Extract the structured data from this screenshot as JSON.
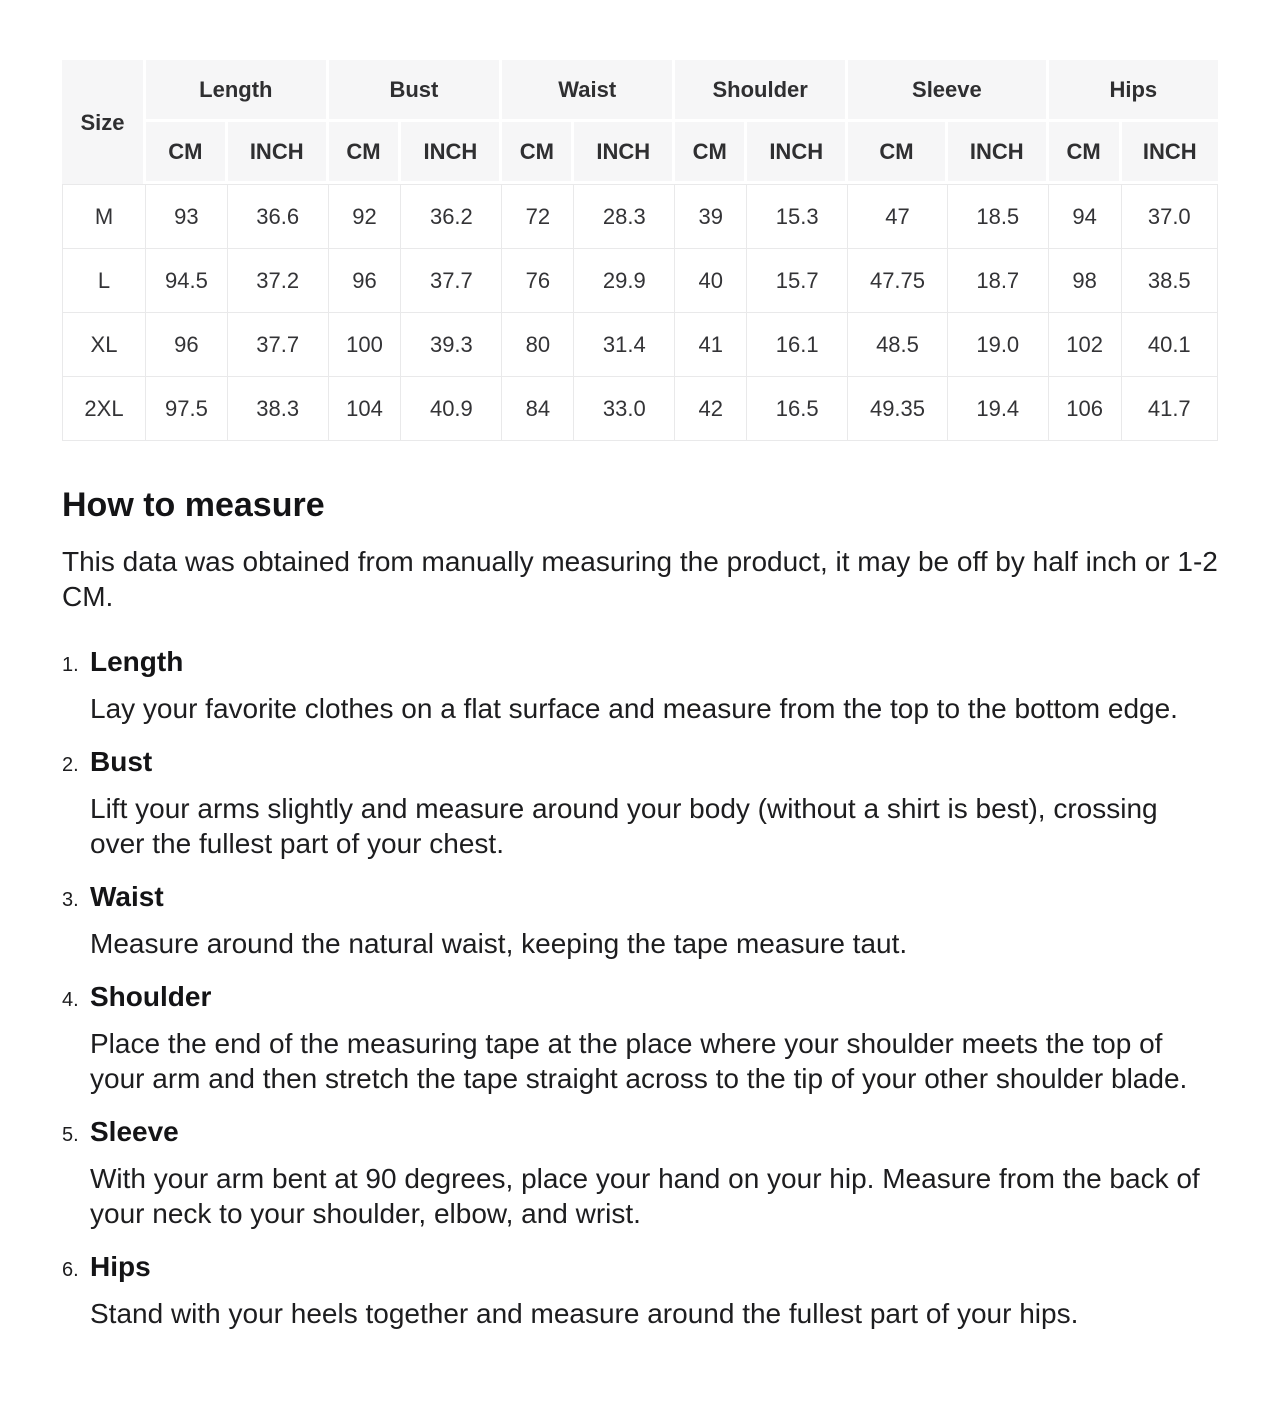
{
  "size_chart": {
    "corner_label": "Size",
    "groups": [
      "Length",
      "Bust",
      "Waist",
      "Shoulder",
      "Sleeve",
      "Hips"
    ],
    "units": [
      "CM",
      "INCH"
    ],
    "rows": [
      {
        "size": "M",
        "values": [
          "93",
          "36.6",
          "92",
          "36.2",
          "72",
          "28.3",
          "39",
          "15.3",
          "47",
          "18.5",
          "94",
          "37.0"
        ]
      },
      {
        "size": "L",
        "values": [
          "94.5",
          "37.2",
          "96",
          "37.7",
          "76",
          "29.9",
          "40",
          "15.7",
          "47.75",
          "18.7",
          "98",
          "38.5"
        ]
      },
      {
        "size": "XL",
        "values": [
          "96",
          "37.7",
          "100",
          "39.3",
          "80",
          "31.4",
          "41",
          "16.1",
          "48.5",
          "19.0",
          "102",
          "40.1"
        ]
      },
      {
        "size": "2XL",
        "values": [
          "97.5",
          "38.3",
          "104",
          "40.9",
          "84",
          "33.0",
          "42",
          "16.5",
          "49.35",
          "19.4",
          "106",
          "41.7"
        ]
      }
    ]
  },
  "how_to_measure": {
    "title": "How to measure",
    "intro": "This data was obtained from manually measuring the product, it may be off by half inch or 1-2 CM.",
    "steps": [
      {
        "number": "1.",
        "title": "Length",
        "description": "Lay your favorite clothes on a flat surface and measure from the top to the bottom edge."
      },
      {
        "number": "2.",
        "title": "Bust",
        "description": "Lift your arms slightly and measure around your body (without a shirt is best), crossing over the fullest part of your chest."
      },
      {
        "number": "3.",
        "title": "Waist",
        "description": "Measure around the natural waist, keeping the tape measure taut."
      },
      {
        "number": "4.",
        "title": "Shoulder",
        "description": "Place the end of the measuring tape at the place where your shoulder meets the top of your arm and then stretch the tape straight across to the tip of your other shoulder blade."
      },
      {
        "number": "5.",
        "title": "Sleeve",
        "description": "With your arm bent at 90 degrees, place your hand on your hip. Measure from the back of your neck to your shoulder, elbow, and wrist."
      },
      {
        "number": "6.",
        "title": "Hips",
        "description": "Stand with your heels together and measure around the fullest part of your hips."
      }
    ]
  }
}
